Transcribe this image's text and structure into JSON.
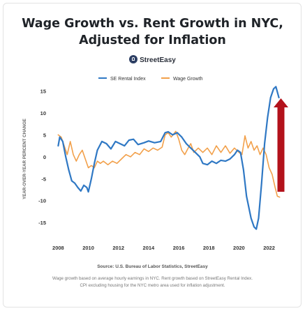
{
  "title_line1": "Wage Growth vs. Rent Growth in NYC,",
  "title_line2": "Adjusted for Inflation",
  "brand": "StreetEasy",
  "source": "Source: U.S. Bureau of Labor Statistics, StreetEasy",
  "note_line1": "Wage growth based on average hourly earnings in NYC. Rent growth based on StreetEasy Rental Index.",
  "note_line2": "CPI excluding housing for the NYC metro area used for inflation adjustment.",
  "colors": {
    "rental_index": "#2f78c4",
    "wage_growth": "#f2a04a",
    "arrow": "#b3121b"
  },
  "chart_data": {
    "type": "line",
    "ylabel": "YEAR-OVER-YEAR PERCENT CHANGE",
    "xlabel": "",
    "xlim": [
      2007.75,
      2022.9
    ],
    "ylim": [
      -18,
      17
    ],
    "x_ticks": [
      2008,
      2010,
      2012,
      2014,
      2016,
      2018,
      2020,
      2022
    ],
    "y_ticks": [
      15,
      10,
      5,
      0,
      -5,
      -10,
      -15
    ],
    "grid": false,
    "legend_position": "top-center",
    "annotation": "red upward arrow at right edge",
    "series": [
      {
        "name": "SE Rental Index",
        "color": "#2f78c4",
        "points": [
          [
            2008.0,
            2.5
          ],
          [
            2008.1,
            4.5
          ],
          [
            2008.3,
            3.5
          ],
          [
            2008.5,
            0.0
          ],
          [
            2008.7,
            -3.0
          ],
          [
            2008.9,
            -5.5
          ],
          [
            2009.1,
            -6.0
          ],
          [
            2009.3,
            -7.0
          ],
          [
            2009.5,
            -7.8
          ],
          [
            2009.7,
            -6.5
          ],
          [
            2009.9,
            -7.0
          ],
          [
            2010.0,
            -8.0
          ],
          [
            2010.2,
            -5.0
          ],
          [
            2010.4,
            -1.5
          ],
          [
            2010.6,
            1.5
          ],
          [
            2010.9,
            3.5
          ],
          [
            2011.2,
            3.0
          ],
          [
            2011.5,
            1.8
          ],
          [
            2011.8,
            3.5
          ],
          [
            2012.1,
            3.0
          ],
          [
            2012.4,
            2.5
          ],
          [
            2012.7,
            3.8
          ],
          [
            2013.0,
            4.0
          ],
          [
            2013.3,
            2.8
          ],
          [
            2013.7,
            3.2
          ],
          [
            2014.0,
            3.6
          ],
          [
            2014.4,
            3.2
          ],
          [
            2014.8,
            3.5
          ],
          [
            2015.1,
            5.5
          ],
          [
            2015.3,
            5.7
          ],
          [
            2015.6,
            5.0
          ],
          [
            2015.9,
            5.5
          ],
          [
            2016.2,
            4.5
          ],
          [
            2016.5,
            3.0
          ],
          [
            2016.8,
            2.0
          ],
          [
            2017.1,
            1.0
          ],
          [
            2017.4,
            0.0
          ],
          [
            2017.6,
            -1.5
          ],
          [
            2017.9,
            -1.8
          ],
          [
            2018.2,
            -1.0
          ],
          [
            2018.5,
            -1.5
          ],
          [
            2018.8,
            -0.8
          ],
          [
            2019.1,
            -1.0
          ],
          [
            2019.4,
            -0.5
          ],
          [
            2019.7,
            0.5
          ],
          [
            2019.9,
            1.5
          ],
          [
            2020.1,
            1.0
          ],
          [
            2020.3,
            -3.0
          ],
          [
            2020.5,
            -9.0
          ],
          [
            2020.8,
            -14.0
          ],
          [
            2021.0,
            -16.0
          ],
          [
            2021.15,
            -16.5
          ],
          [
            2021.3,
            -14.0
          ],
          [
            2021.5,
            -6.0
          ],
          [
            2021.7,
            3.0
          ],
          [
            2021.9,
            9.0
          ],
          [
            2022.1,
            13.5
          ],
          [
            2022.3,
            15.5
          ],
          [
            2022.45,
            16.0
          ],
          [
            2022.65,
            13.5
          ]
        ]
      },
      {
        "name": "Wage Growth",
        "color": "#f2a04a",
        "points": [
          [
            2008.0,
            5.0
          ],
          [
            2008.2,
            4.5
          ],
          [
            2008.4,
            2.5
          ],
          [
            2008.6,
            0.5
          ],
          [
            2008.8,
            3.5
          ],
          [
            2009.0,
            0.5
          ],
          [
            2009.2,
            -1.0
          ],
          [
            2009.4,
            0.5
          ],
          [
            2009.6,
            1.5
          ],
          [
            2009.8,
            -0.5
          ],
          [
            2010.0,
            -2.5
          ],
          [
            2010.2,
            -2.0
          ],
          [
            2010.4,
            -2.5
          ],
          [
            2010.6,
            -1.0
          ],
          [
            2010.8,
            -1.5
          ],
          [
            2011.0,
            -1.0
          ],
          [
            2011.3,
            -1.8
          ],
          [
            2011.6,
            -1.0
          ],
          [
            2011.9,
            -1.5
          ],
          [
            2012.2,
            -0.5
          ],
          [
            2012.5,
            0.5
          ],
          [
            2012.8,
            0.0
          ],
          [
            2013.1,
            1.0
          ],
          [
            2013.4,
            0.5
          ],
          [
            2013.7,
            1.8
          ],
          [
            2014.0,
            1.2
          ],
          [
            2014.3,
            2.0
          ],
          [
            2014.6,
            1.5
          ],
          [
            2014.9,
            2.2
          ],
          [
            2015.1,
            5.0
          ],
          [
            2015.3,
            5.5
          ],
          [
            2015.5,
            4.5
          ],
          [
            2015.8,
            5.8
          ],
          [
            2016.0,
            4.0
          ],
          [
            2016.2,
            1.5
          ],
          [
            2016.4,
            0.5
          ],
          [
            2016.6,
            1.8
          ],
          [
            2016.8,
            3.0
          ],
          [
            2017.0,
            1.0
          ],
          [
            2017.3,
            2.0
          ],
          [
            2017.6,
            1.0
          ],
          [
            2017.9,
            2.0
          ],
          [
            2018.2,
            0.5
          ],
          [
            2018.5,
            2.5
          ],
          [
            2018.8,
            1.0
          ],
          [
            2019.1,
            2.5
          ],
          [
            2019.4,
            0.8
          ],
          [
            2019.7,
            2.0
          ],
          [
            2020.0,
            1.0
          ],
          [
            2020.2,
            0.5
          ],
          [
            2020.4,
            4.8
          ],
          [
            2020.6,
            2.0
          ],
          [
            2020.8,
            3.5
          ],
          [
            2021.0,
            1.5
          ],
          [
            2021.2,
            2.5
          ],
          [
            2021.4,
            0.5
          ],
          [
            2021.6,
            2.0
          ],
          [
            2021.8,
            0.5
          ],
          [
            2022.0,
            -2.5
          ],
          [
            2022.2,
            -4.0
          ],
          [
            2022.4,
            -7.0
          ],
          [
            2022.55,
            -9.0
          ],
          [
            2022.7,
            -9.2
          ]
        ]
      }
    ]
  }
}
